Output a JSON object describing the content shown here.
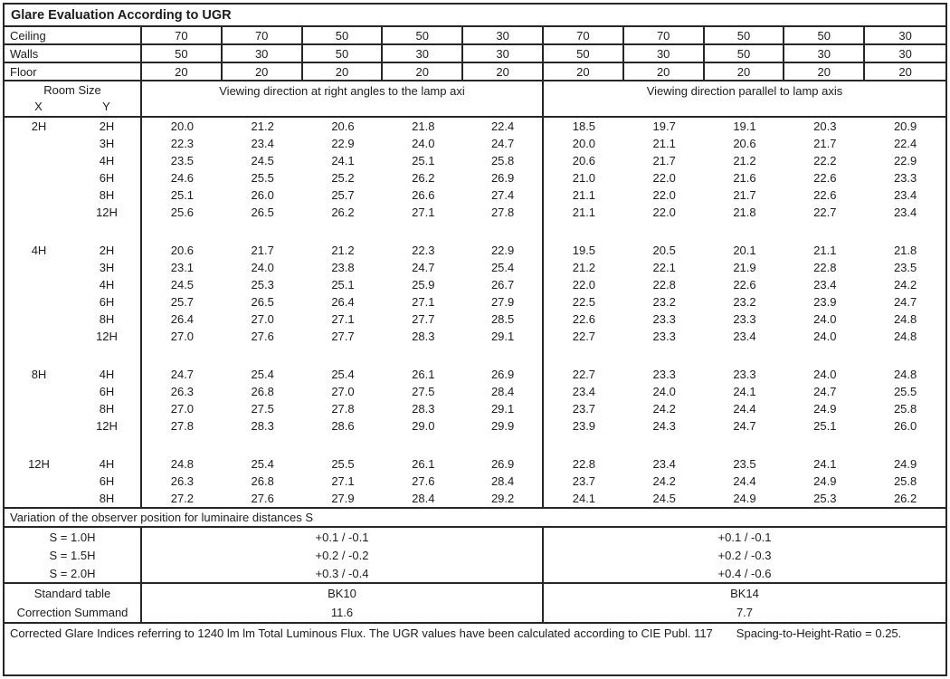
{
  "title": "Glare Evaluation According to UGR",
  "surface_rows": [
    {
      "label": "Ceiling",
      "values": [
        "70",
        "70",
        "50",
        "50",
        "30",
        "70",
        "70",
        "50",
        "50",
        "30"
      ]
    },
    {
      "label": "Walls",
      "values": [
        "50",
        "30",
        "50",
        "30",
        "30",
        "50",
        "30",
        "50",
        "30",
        "30"
      ]
    },
    {
      "label": "Floor",
      "values": [
        "20",
        "20",
        "20",
        "20",
        "20",
        "20",
        "20",
        "20",
        "20",
        "20"
      ]
    }
  ],
  "header": {
    "room_size": "Room Size",
    "x_label": "X",
    "y_label": "Y",
    "left_section": "Viewing direction at right angles to the lamp axi",
    "right_section": "Viewing direction parallel to lamp axis"
  },
  "groups": [
    {
      "x": "2H",
      "rows": [
        {
          "y": "2H",
          "values": [
            "20.0",
            "21.2",
            "20.6",
            "21.8",
            "22.4",
            "18.5",
            "19.7",
            "19.1",
            "20.3",
            "20.9"
          ]
        },
        {
          "y": "3H",
          "values": [
            "22.3",
            "23.4",
            "22.9",
            "24.0",
            "24.7",
            "20.0",
            "21.1",
            "20.6",
            "21.7",
            "22.4"
          ]
        },
        {
          "y": "4H",
          "values": [
            "23.5",
            "24.5",
            "24.1",
            "25.1",
            "25.8",
            "20.6",
            "21.7",
            "21.2",
            "22.2",
            "22.9"
          ]
        },
        {
          "y": "6H",
          "values": [
            "24.6",
            "25.5",
            "25.2",
            "26.2",
            "26.9",
            "21.0",
            "22.0",
            "21.6",
            "22.6",
            "23.3"
          ]
        },
        {
          "y": "8H",
          "values": [
            "25.1",
            "26.0",
            "25.7",
            "26.6",
            "27.4",
            "21.1",
            "22.0",
            "21.7",
            "22.6",
            "23.4"
          ]
        },
        {
          "y": "12H",
          "values": [
            "25.6",
            "26.5",
            "26.2",
            "27.1",
            "27.8",
            "21.1",
            "22.0",
            "21.8",
            "22.7",
            "23.4"
          ]
        }
      ]
    },
    {
      "x": "4H",
      "rows": [
        {
          "y": "2H",
          "values": [
            "20.6",
            "21.7",
            "21.2",
            "22.3",
            "22.9",
            "19.5",
            "20.5",
            "20.1",
            "21.1",
            "21.8"
          ]
        },
        {
          "y": "3H",
          "values": [
            "23.1",
            "24.0",
            "23.8",
            "24.7",
            "25.4",
            "21.2",
            "22.1",
            "21.9",
            "22.8",
            "23.5"
          ]
        },
        {
          "y": "4H",
          "values": [
            "24.5",
            "25.3",
            "25.1",
            "25.9",
            "26.7",
            "22.0",
            "22.8",
            "22.6",
            "23.4",
            "24.2"
          ]
        },
        {
          "y": "6H",
          "values": [
            "25.7",
            "26.5",
            "26.4",
            "27.1",
            "27.9",
            "22.5",
            "23.2",
            "23.2",
            "23.9",
            "24.7"
          ]
        },
        {
          "y": "8H",
          "values": [
            "26.4",
            "27.0",
            "27.1",
            "27.7",
            "28.5",
            "22.6",
            "23.3",
            "23.3",
            "24.0",
            "24.8"
          ]
        },
        {
          "y": "12H",
          "values": [
            "27.0",
            "27.6",
            "27.7",
            "28.3",
            "29.1",
            "22.7",
            "23.3",
            "23.4",
            "24.0",
            "24.8"
          ]
        }
      ]
    },
    {
      "x": "8H",
      "rows": [
        {
          "y": "4H",
          "values": [
            "24.7",
            "25.4",
            "25.4",
            "26.1",
            "26.9",
            "22.7",
            "23.3",
            "23.3",
            "24.0",
            "24.8"
          ]
        },
        {
          "y": "6H",
          "values": [
            "26.3",
            "26.8",
            "27.0",
            "27.5",
            "28.4",
            "23.4",
            "24.0",
            "24.1",
            "24.7",
            "25.5"
          ]
        },
        {
          "y": "8H",
          "values": [
            "27.0",
            "27.5",
            "27.8",
            "28.3",
            "29.1",
            "23.7",
            "24.2",
            "24.4",
            "24.9",
            "25.8"
          ]
        },
        {
          "y": "12H",
          "values": [
            "27.8",
            "28.3",
            "28.6",
            "29.0",
            "29.9",
            "23.9",
            "24.3",
            "24.7",
            "25.1",
            "26.0"
          ]
        }
      ]
    },
    {
      "x": "12H",
      "rows": [
        {
          "y": "4H",
          "values": [
            "24.8",
            "25.4",
            "25.5",
            "26.1",
            "26.9",
            "22.8",
            "23.4",
            "23.5",
            "24.1",
            "24.9"
          ]
        },
        {
          "y": "6H",
          "values": [
            "26.3",
            "26.8",
            "27.1",
            "27.6",
            "28.4",
            "23.7",
            "24.2",
            "24.4",
            "24.9",
            "25.8"
          ]
        },
        {
          "y": "8H",
          "values": [
            "27.2",
            "27.6",
            "27.9",
            "28.4",
            "29.2",
            "24.1",
            "24.5",
            "24.9",
            "25.3",
            "26.2"
          ]
        }
      ]
    }
  ],
  "variation": {
    "heading": "Variation of the observer position for luminaire distances S",
    "rows": [
      {
        "label": "S = 1.0H",
        "left": "+0.1 / -0.1",
        "right": "+0.1 / -0.1"
      },
      {
        "label": "S = 1.5H",
        "left": "+0.2 / -0.2",
        "right": "+0.2 / -0.3"
      },
      {
        "label": "S = 2.0H",
        "left": "+0.3 / -0.4",
        "right": "+0.4 / -0.6"
      }
    ]
  },
  "summary": {
    "rows": [
      {
        "label": "Standard table",
        "left": "BK10",
        "right": "BK14"
      },
      {
        "label": "Correction Summand",
        "left": "11.6",
        "right": "7.7"
      }
    ]
  },
  "footer": {
    "note1": "Corrected Glare Indices referring to 1240 lm lm Total Luminous Flux. The UGR values have been calculated according to CIE Publ. 117",
    "note2": "Spacing-to-Height-Ratio = 0.25."
  }
}
